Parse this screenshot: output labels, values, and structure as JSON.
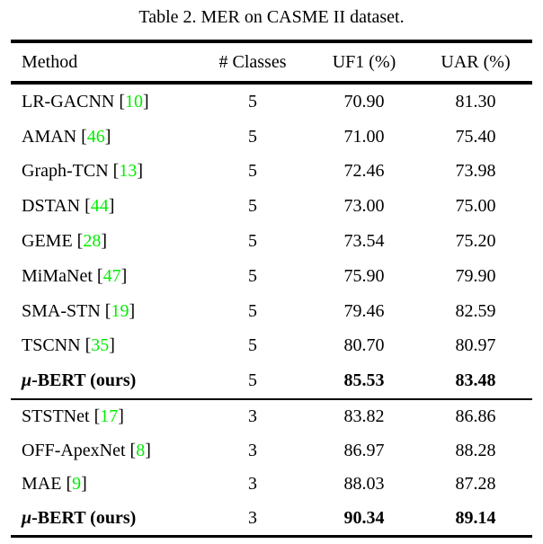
{
  "caption": "Table 2. MER on CASME II dataset.",
  "colors": {
    "citation_green": "#00ee00",
    "text": "#000000"
  },
  "columns": {
    "method": "Method",
    "classes": "# Classes",
    "uf1": "UF1 (%)",
    "uar": "UAR (%)"
  },
  "punct": {
    "open": "[",
    "close": "]"
  },
  "rows": [
    {
      "method": "LR-GACNN",
      "cite": "10",
      "classes": "5",
      "uf1": "70.90",
      "uar": "81.30"
    },
    {
      "method": "AMAN",
      "cite": "46",
      "classes": "5",
      "uf1": "71.00",
      "uar": "75.40"
    },
    {
      "method": "Graph-TCN",
      "cite": "13",
      "classes": "5",
      "uf1": "72.46",
      "uar": "73.98"
    },
    {
      "method": "DSTAN",
      "cite": "44",
      "classes": "5",
      "uf1": "73.00",
      "uar": "75.00"
    },
    {
      "method": "GEME",
      "cite": "28",
      "classes": "5",
      "uf1": "73.54",
      "uar": "75.20"
    },
    {
      "method": "MiMaNet",
      "cite": "47",
      "classes": "5",
      "uf1": "75.90",
      "uar": "79.90"
    },
    {
      "method": "SMA-STN",
      "cite": "19",
      "classes": "5",
      "uf1": "79.46",
      "uar": "82.59"
    },
    {
      "method": "TSCNN",
      "cite": "35",
      "classes": "5",
      "uf1": "80.70",
      "uar": "80.97"
    },
    {
      "method_mu": "μ",
      "method_rest": "-BERT (ours)",
      "classes": "5",
      "uf1": "85.53",
      "uar": "83.48"
    },
    {
      "method": "STSTNet",
      "cite": "17",
      "classes": "3",
      "uf1": "83.82",
      "uar": "86.86"
    },
    {
      "method": "OFF-ApexNet",
      "cite": "8",
      "classes": "3",
      "uf1": "86.97",
      "uar": "88.28"
    },
    {
      "method": "MAE",
      "cite": "9",
      "classes": "3",
      "uf1": "88.03",
      "uar": "87.28"
    },
    {
      "method_mu": "μ",
      "method_rest": "-BERT (ours)",
      "classes": "3",
      "uf1": "90.34",
      "uar": "89.14"
    }
  ]
}
